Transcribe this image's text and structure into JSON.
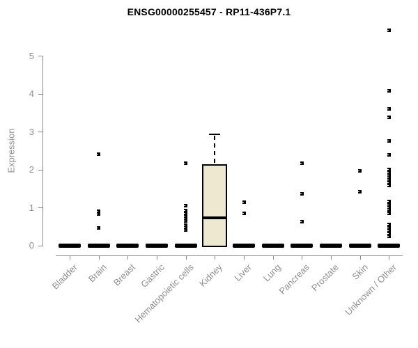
{
  "chart_data": {
    "type": "boxplot",
    "title": "ENSG00000255457 - RP11-436P7.1",
    "ylabel": "Expression",
    "xlabel": "",
    "ylim": [
      0,
      5
    ],
    "yticks": [
      0,
      1,
      2,
      3,
      4,
      5
    ],
    "grid": false,
    "legend": "none",
    "box_fill_color": "#ede8d0",
    "box_border_color": "#000000",
    "axis_color": "#8a8a8a",
    "label_color": "#8e8e8e",
    "categories": [
      "Bladder",
      "Brain",
      "Breast",
      "Gastric",
      "Hematopoietic cells",
      "Kidney",
      "Liver",
      "Lung",
      "Pancreas",
      "Prostate",
      "Skin",
      "Unknown / Other"
    ],
    "boxes": [
      {
        "category": "Bladder",
        "whisker_low": 0,
        "q1": 0,
        "median": 0,
        "q3": 0,
        "whisker_high": 0,
        "outliers": []
      },
      {
        "category": "Brain",
        "whisker_low": 0,
        "q1": 0,
        "median": 0,
        "q3": 0,
        "whisker_high": 0,
        "outliers": [
          2.4,
          0.9,
          0.82,
          0.46
        ]
      },
      {
        "category": "Breast",
        "whisker_low": 0,
        "q1": 0,
        "median": 0,
        "q3": 0,
        "whisker_high": 0,
        "outliers": []
      },
      {
        "category": "Gastric",
        "whisker_low": 0,
        "q1": 0,
        "median": 0,
        "q3": 0,
        "whisker_high": 0,
        "outliers": []
      },
      {
        "category": "Hematopoietic cells",
        "whisker_low": 0,
        "q1": 0,
        "median": 0,
        "q3": 0,
        "whisker_high": 0,
        "outliers": [
          2.17,
          1.04,
          0.91,
          0.84,
          0.77,
          0.7,
          0.65,
          0.54,
          0.47,
          0.4
        ]
      },
      {
        "category": "Kidney",
        "whisker_low": 0,
        "q1": 0,
        "median": 0.72,
        "q3": 2.13,
        "whisker_high": 2.95,
        "outliers": []
      },
      {
        "category": "Liver",
        "whisker_low": 0,
        "q1": 0,
        "median": 0,
        "q3": 0,
        "whisker_high": 0,
        "outliers": [
          1.13,
          0.84
        ]
      },
      {
        "category": "Lung",
        "whisker_low": 0,
        "q1": 0,
        "median": 0,
        "q3": 0,
        "whisker_high": 0,
        "outliers": []
      },
      {
        "category": "Pancreas",
        "whisker_low": 0,
        "q1": 0,
        "median": 0,
        "q3": 0,
        "whisker_high": 0,
        "outliers": [
          2.17,
          1.35,
          0.62
        ]
      },
      {
        "category": "Prostate",
        "whisker_low": 0,
        "q1": 0,
        "median": 0,
        "q3": 0,
        "whisker_high": 0,
        "outliers": []
      },
      {
        "category": "Skin",
        "whisker_low": 0,
        "q1": 0,
        "median": 0,
        "q3": 0,
        "whisker_high": 0,
        "outliers": [
          1.97,
          1.42
        ]
      },
      {
        "category": "Unknown / Other",
        "whisker_low": 0,
        "q1": 0,
        "median": 0,
        "q3": 0,
        "whisker_high": 0,
        "outliers": [
          5.67,
          4.07,
          3.6,
          3.38,
          2.76,
          2.39,
          2.0,
          1.93,
          1.86,
          1.79,
          1.72,
          1.65,
          1.57,
          1.15,
          1.07,
          1.0,
          0.93,
          0.84,
          0.55,
          0.45,
          0.38,
          0.31,
          0.24
        ]
      }
    ]
  }
}
